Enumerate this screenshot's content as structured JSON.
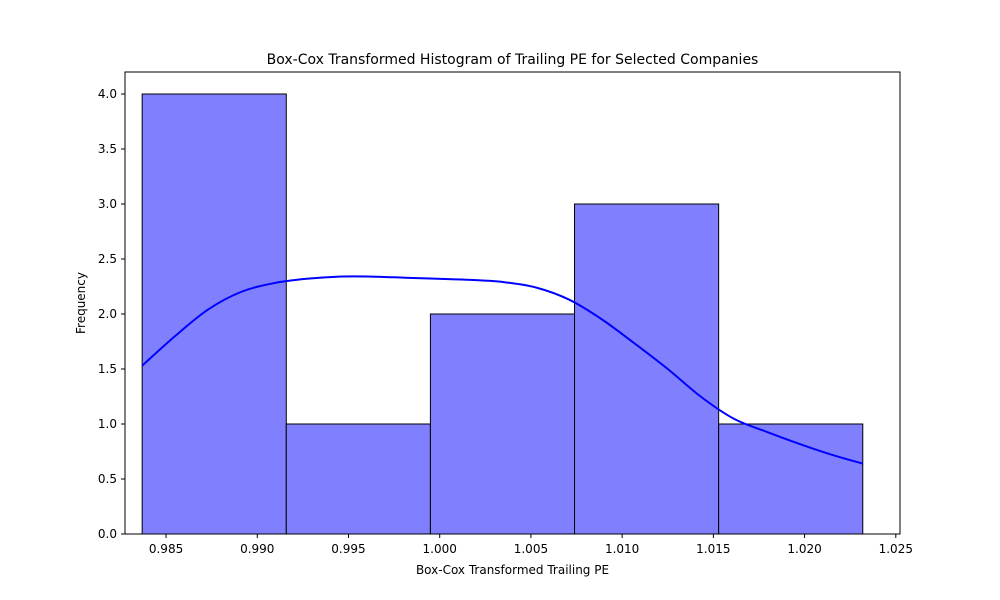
{
  "chart_data": {
    "type": "histogram",
    "title": "Box-Cox Transformed Histogram of Trailing PE for Selected Companies",
    "xlabel": "Box-Cox Transformed Trailing PE",
    "ylabel": "Frequency",
    "xlim": [
      0.98275,
      1.02523
    ],
    "ylim": [
      0,
      4.2
    ],
    "x_ticks": [
      0.985,
      0.99,
      0.995,
      1.0,
      1.005,
      1.01,
      1.015,
      1.02,
      1.025
    ],
    "x_tick_labels": [
      "0.985",
      "0.990",
      "0.995",
      "1.000",
      "1.005",
      "1.010",
      "1.015",
      "1.020",
      "1.025"
    ],
    "y_ticks": [
      0.0,
      0.5,
      1.0,
      1.5,
      2.0,
      2.5,
      3.0,
      3.5,
      4.0
    ],
    "y_tick_labels": [
      "0.0",
      "0.5",
      "1.0",
      "1.5",
      "2.0",
      "2.5",
      "3.0",
      "3.5",
      "4.0"
    ],
    "bins": [
      {
        "x0": 0.98369,
        "x1": 0.99159,
        "count": 4
      },
      {
        "x0": 0.99159,
        "x1": 0.99949,
        "count": 1
      },
      {
        "x0": 0.99949,
        "x1": 1.00739,
        "count": 2
      },
      {
        "x0": 1.00739,
        "x1": 1.01529,
        "count": 3
      },
      {
        "x0": 1.01529,
        "x1": 1.02319,
        "count": 1
      }
    ],
    "kde": {
      "x": [
        0.98369,
        0.9855,
        0.9873,
        0.9891,
        0.9909,
        0.9927,
        0.9945,
        0.9963,
        0.9981,
        0.9999,
        1.0017,
        1.0035,
        1.0053,
        1.0071,
        1.0089,
        1.0107,
        1.0125,
        1.0143,
        1.0161,
        1.0179,
        1.0197,
        1.0215,
        1.02319
      ],
      "y": [
        1.53,
        1.8,
        2.04,
        2.2,
        2.28,
        2.32,
        2.34,
        2.34,
        2.33,
        2.32,
        2.31,
        2.29,
        2.24,
        2.13,
        1.95,
        1.73,
        1.5,
        1.25,
        1.05,
        0.93,
        0.82,
        0.72,
        0.64
      ]
    },
    "grid": false,
    "legend": "none",
    "colors": {
      "bar_fill": "#8080ff",
      "bar_edge": "#000000",
      "kde_line": "#0000ff"
    }
  }
}
